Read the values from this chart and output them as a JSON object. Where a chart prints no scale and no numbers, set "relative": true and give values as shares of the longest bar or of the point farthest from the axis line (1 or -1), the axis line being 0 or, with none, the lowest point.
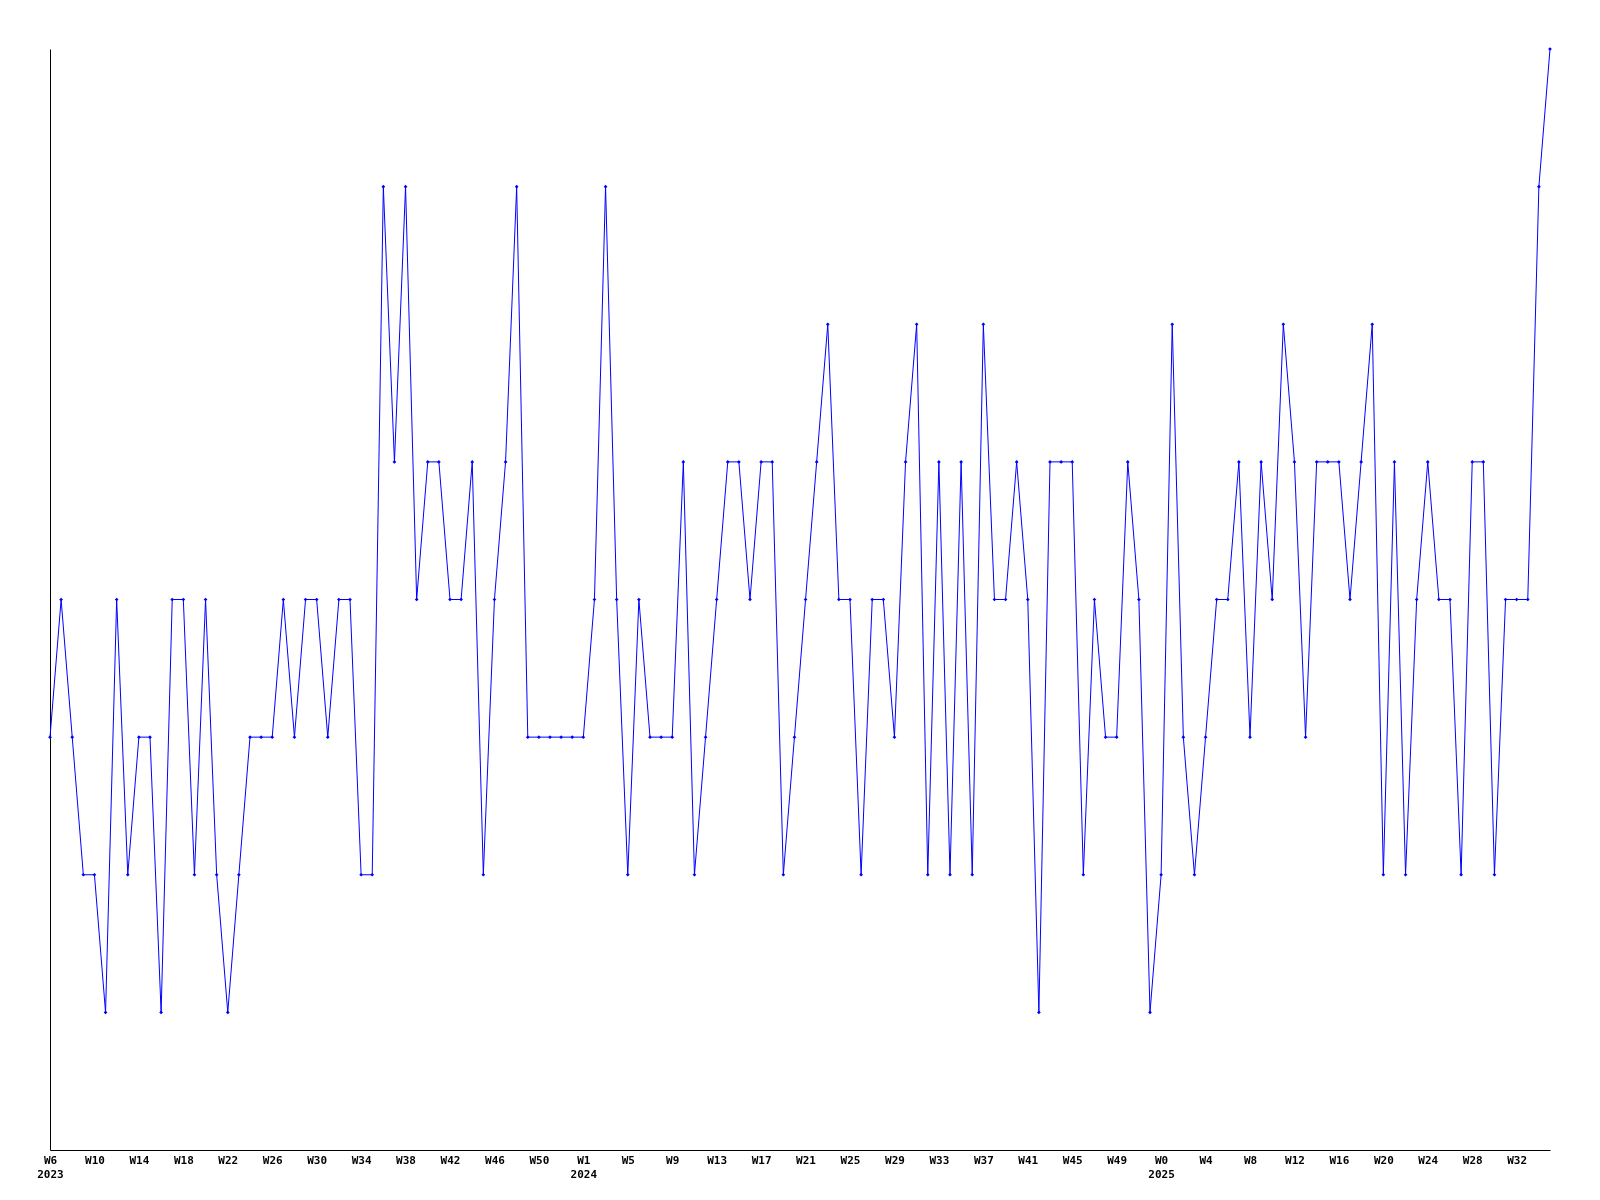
{
  "chart_data": {
    "type": "line",
    "relative": true,
    "marker": "diamond",
    "line_style": "solid",
    "grid": false,
    "legend": false,
    "categories": [
      "W6\n2023",
      null,
      null,
      null,
      "W10",
      null,
      null,
      null,
      "W14",
      null,
      null,
      null,
      "W18",
      null,
      null,
      null,
      "W22",
      null,
      null,
      null,
      "W26",
      null,
      null,
      null,
      "W30",
      null,
      null,
      null,
      "W34",
      null,
      null,
      null,
      "W38",
      null,
      null,
      null,
      "W42",
      null,
      null,
      null,
      "W46",
      null,
      null,
      null,
      "W50",
      null,
      null,
      null,
      "W1\n2024",
      null,
      null,
      null,
      "W5",
      null,
      null,
      null,
      "W9",
      null,
      null,
      null,
      "W13",
      null,
      null,
      null,
      "W17",
      null,
      null,
      null,
      "W21",
      null,
      null,
      null,
      "W25",
      null,
      null,
      null,
      "W29",
      null,
      null,
      null,
      "W33",
      null,
      null,
      null,
      "W37",
      null,
      null,
      null,
      "W41",
      null,
      null,
      null,
      "W45",
      null,
      null,
      null,
      "W49",
      null,
      null,
      null,
      "W0\n2025",
      null,
      null,
      null,
      "W4",
      null,
      null,
      null,
      "W8",
      null,
      null,
      null,
      "W12",
      null,
      null,
      null,
      "W16",
      null,
      null,
      null,
      "W20",
      null,
      null,
      null,
      "W24",
      null,
      null,
      null,
      "W28",
      null,
      null,
      null,
      "W32",
      null,
      null,
      null
    ],
    "series": [
      {
        "color": "#0000ff",
        "values": [
          0.375,
          0.5,
          0.375,
          0.25,
          0.25,
          0.125,
          0.5,
          0.25,
          0.375,
          0.375,
          0.125,
          0.5,
          0.5,
          0.25,
          0.5,
          0.25,
          0.125,
          0.25,
          0.375,
          0.375,
          0.375,
          0.5,
          0.375,
          0.5,
          0.5,
          0.375,
          0.5,
          0.5,
          0.25,
          0.25,
          0.875,
          0.625,
          0.875,
          0.5,
          0.625,
          0.625,
          0.5,
          0.5,
          0.625,
          0.25,
          0.5,
          0.625,
          0.875,
          0.375,
          0.375,
          0.375,
          0.375,
          0.375,
          0.375,
          0.5,
          0.875,
          0.5,
          0.25,
          0.5,
          0.375,
          0.375,
          0.375,
          0.625,
          0.25,
          0.375,
          0.5,
          0.625,
          0.625,
          0.5,
          0.625,
          0.625,
          0.25,
          0.375,
          0.5,
          0.625,
          0.75,
          0.5,
          0.5,
          0.25,
          0.5,
          0.5,
          0.375,
          0.625,
          0.75,
          0.25,
          0.625,
          0.25,
          0.625,
          0.25,
          0.75,
          0.5,
          0.5,
          0.625,
          0.5,
          0.125,
          0.625,
          0.625,
          0.625,
          0.25,
          0.5,
          0.375,
          0.375,
          0.625,
          0.5,
          0.125,
          0.25,
          0.75,
          0.375,
          0.25,
          0.375,
          0.5,
          0.5,
          0.625,
          0.375,
          0.625,
          0.5,
          0.75,
          0.625,
          0.375,
          0.625,
          0.625,
          0.625,
          0.5,
          0.625,
          0.75,
          0.25,
          0.625,
          0.25,
          0.5,
          0.625,
          0.5,
          0.5,
          0.25,
          0.625,
          0.625,
          0.25,
          0.5,
          0.5,
          0.5,
          0.875,
          1
        ]
      }
    ]
  }
}
